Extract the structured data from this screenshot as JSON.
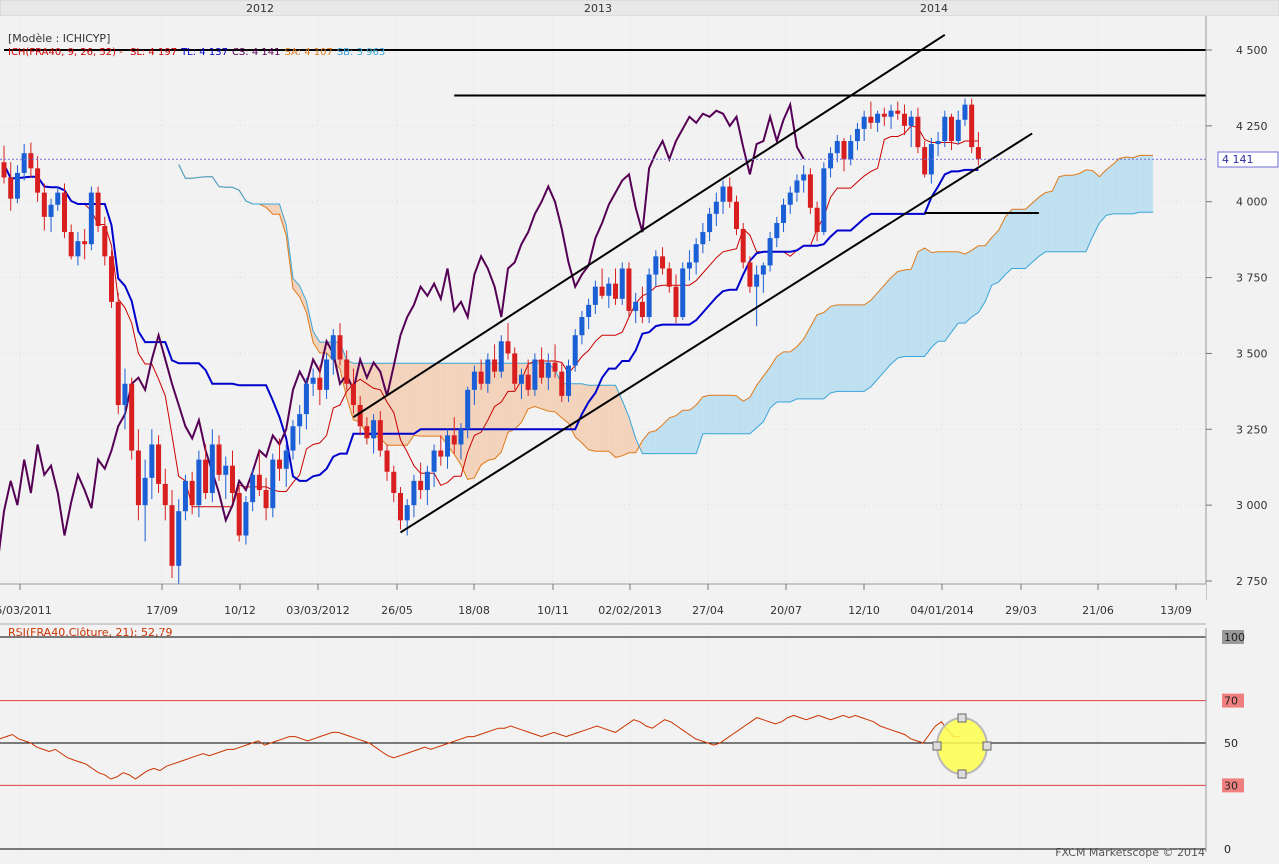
{
  "header": {
    "model_label": "[Modèle : ICHICYP]",
    "ichimoku_legend": {
      "name": "ICH(FRA40, 9, 26, 52)",
      "parts": [
        {
          "text": "SL: 4 197",
          "color": "#cc0000"
        },
        {
          "text": "TL: 4 137",
          "color": "#0000cc"
        },
        {
          "text": "CS: 4 141",
          "color": "#550055"
        },
        {
          "text": "SA: 4 107",
          "color": "#e07a1a"
        },
        {
          "text": "SB: 3 963",
          "color": "#3aa5d8"
        }
      ]
    },
    "year_markers": [
      "2012",
      "2013",
      "2014"
    ]
  },
  "price_axis": {
    "ticks": [
      "4 500",
      "4 250",
      "4 000",
      "3 750",
      "3 500",
      "3 250",
      "3 000",
      "2 750"
    ],
    "current_label": "4 141"
  },
  "date_axis": {
    "ticks": [
      "26/03/2011",
      "17/09",
      "10/12",
      "03/03/2012",
      "26/05",
      "18/08",
      "10/11",
      "02/02/2013",
      "27/04",
      "20/07",
      "12/10",
      "04/01/2014",
      "29/03",
      "21/06",
      "13/09"
    ]
  },
  "rsi": {
    "label": "RSI(FRA40.Clôture, 21): 52,79",
    "ticks": [
      "100",
      "70",
      "50",
      "30",
      "0"
    ]
  },
  "footer": {
    "credit": "FXCM Marketscope © 2014"
  },
  "colors": {
    "candle_up": "#1a5fd6",
    "candle_down": "#d81e1e",
    "tenkan": "#cc0000",
    "kijun": "#0000cc",
    "chikou": "#550055",
    "senkou_a": "#e07a1a",
    "senkou_b": "#3aa5d8",
    "cloud_bull": "#bfe0f0",
    "cloud_bear": "#f3d3bb",
    "rsi_line": "#cc3300",
    "trendlines": "#000000"
  },
  "chart_data": [
    {
      "type": "candlestick",
      "title": "ICH(FRA40, 9, 26, 52)",
      "instrument": "FRA40",
      "timeframe": "weekly",
      "ylim": [
        2750,
        4500
      ],
      "ohlc": [
        [
          4130,
          4185,
          4060,
          4080
        ],
        [
          4080,
          4130,
          3970,
          4010
        ],
        [
          4010,
          4120,
          3995,
          4095
        ],
        [
          4095,
          4190,
          4070,
          4160
        ],
        [
          4160,
          4195,
          4080,
          4110
        ],
        [
          4110,
          4150,
          4000,
          4030
        ],
        [
          4030,
          4060,
          3905,
          3950
        ],
        [
          3950,
          4010,
          3900,
          3990
        ],
        [
          3990,
          4050,
          3970,
          4030
        ],
        [
          4030,
          4060,
          3880,
          3900
        ],
        [
          3900,
          3925,
          3810,
          3820
        ],
        [
          3820,
          3900,
          3790,
          3870
        ],
        [
          3870,
          3910,
          3810,
          3860
        ],
        [
          3860,
          4050,
          3840,
          4030
        ],
        [
          4030,
          4050,
          3900,
          3920
        ],
        [
          3920,
          3950,
          3790,
          3820
        ],
        [
          3820,
          3840,
          3650,
          3670
        ],
        [
          3670,
          3700,
          3300,
          3330
        ],
        [
          3330,
          3450,
          3250,
          3400
        ],
        [
          3400,
          3420,
          3150,
          3180
        ],
        [
          3180,
          3250,
          2950,
          3000
        ],
        [
          3000,
          3150,
          2880,
          3090
        ],
        [
          3090,
          3250,
          3020,
          3200
        ],
        [
          3200,
          3230,
          3040,
          3070
        ],
        [
          3070,
          3120,
          2950,
          3000
        ],
        [
          3000,
          3050,
          2760,
          2800
        ],
        [
          2800,
          3020,
          2740,
          2980
        ],
        [
          2980,
          3100,
          2950,
          3080
        ],
        [
          3080,
          3110,
          2970,
          3000
        ],
        [
          3000,
          3180,
          2960,
          3150
        ],
        [
          3150,
          3200,
          3020,
          3040
        ],
        [
          3040,
          3250,
          3010,
          3200
        ],
        [
          3200,
          3230,
          3080,
          3100
        ],
        [
          3100,
          3160,
          3020,
          3130
        ],
        [
          3130,
          3180,
          3010,
          3040
        ],
        [
          3040,
          3060,
          2880,
          2900
        ],
        [
          2900,
          3030,
          2870,
          3010
        ],
        [
          3010,
          3120,
          2980,
          3100
        ],
        [
          3100,
          3180,
          3030,
          3050
        ],
        [
          3050,
          3090,
          2950,
          2990
        ],
        [
          2990,
          3170,
          2960,
          3150
        ],
        [
          3150,
          3220,
          3080,
          3120
        ],
        [
          3120,
          3200,
          3060,
          3180
        ],
        [
          3180,
          3280,
          3150,
          3260
        ],
        [
          3260,
          3330,
          3200,
          3300
        ],
        [
          3300,
          3420,
          3250,
          3400
        ],
        [
          3400,
          3450,
          3360,
          3420
        ],
        [
          3420,
          3460,
          3330,
          3380
        ],
        [
          3380,
          3500,
          3350,
          3480
        ],
        [
          3480,
          3580,
          3430,
          3560
        ],
        [
          3560,
          3600,
          3460,
          3480
        ],
        [
          3480,
          3510,
          3380,
          3400
        ],
        [
          3400,
          3450,
          3300,
          3330
        ],
        [
          3330,
          3360,
          3230,
          3260
        ],
        [
          3260,
          3290,
          3200,
          3220
        ],
        [
          3220,
          3300,
          3170,
          3280
        ],
        [
          3280,
          3310,
          3160,
          3180
        ],
        [
          3180,
          3200,
          3080,
          3110
        ],
        [
          3110,
          3130,
          3010,
          3040
        ],
        [
          3040,
          3060,
          2920,
          2950
        ],
        [
          2950,
          3020,
          2900,
          3000
        ],
        [
          3000,
          3100,
          2960,
          3080
        ],
        [
          3080,
          3140,
          3020,
          3050
        ],
        [
          3050,
          3130,
          3000,
          3110
        ],
        [
          3110,
          3200,
          3060,
          3180
        ],
        [
          3180,
          3230,
          3130,
          3160
        ],
        [
          3160,
          3250,
          3120,
          3230
        ],
        [
          3230,
          3290,
          3170,
          3200
        ],
        [
          3200,
          3270,
          3150,
          3250
        ],
        [
          3250,
          3390,
          3220,
          3380
        ],
        [
          3380,
          3460,
          3330,
          3440
        ],
        [
          3440,
          3480,
          3380,
          3400
        ],
        [
          3400,
          3500,
          3370,
          3480
        ],
        [
          3480,
          3530,
          3420,
          3440
        ],
        [
          3440,
          3560,
          3420,
          3540
        ],
        [
          3540,
          3600,
          3480,
          3500
        ],
        [
          3500,
          3520,
          3380,
          3400
        ],
        [
          3400,
          3450,
          3350,
          3430
        ],
        [
          3430,
          3480,
          3360,
          3380
        ],
        [
          3380,
          3500,
          3360,
          3480
        ],
        [
          3480,
          3520,
          3400,
          3420
        ],
        [
          3420,
          3500,
          3380,
          3470
        ],
        [
          3470,
          3530,
          3420,
          3440
        ],
        [
          3440,
          3470,
          3340,
          3360
        ],
        [
          3360,
          3480,
          3340,
          3460
        ],
        [
          3460,
          3580,
          3440,
          3560
        ],
        [
          3560,
          3640,
          3530,
          3620
        ],
        [
          3620,
          3680,
          3580,
          3660
        ],
        [
          3660,
          3740,
          3630,
          3720
        ],
        [
          3720,
          3780,
          3680,
          3690
        ],
        [
          3690,
          3750,
          3650,
          3730
        ],
        [
          3730,
          3780,
          3660,
          3680
        ],
        [
          3680,
          3800,
          3660,
          3780
        ],
        [
          3780,
          3800,
          3620,
          3640
        ],
        [
          3640,
          3700,
          3600,
          3670
        ],
        [
          3670,
          3720,
          3600,
          3620
        ],
        [
          3620,
          3780,
          3600,
          3760
        ],
        [
          3760,
          3840,
          3720,
          3820
        ],
        [
          3820,
          3850,
          3760,
          3780
        ],
        [
          3780,
          3800,
          3700,
          3720
        ],
        [
          3720,
          3760,
          3600,
          3620
        ],
        [
          3620,
          3800,
          3610,
          3780
        ],
        [
          3780,
          3840,
          3740,
          3800
        ],
        [
          3800,
          3880,
          3760,
          3860
        ],
        [
          3860,
          3930,
          3830,
          3900
        ],
        [
          3900,
          3980,
          3870,
          3960
        ],
        [
          3960,
          4030,
          3920,
          4000
        ],
        [
          4000,
          4070,
          3960,
          4050
        ],
        [
          4050,
          4080,
          3980,
          4000
        ],
        [
          4000,
          4020,
          3890,
          3910
        ],
        [
          3910,
          3930,
          3780,
          3800
        ],
        [
          3800,
          3820,
          3700,
          3720
        ],
        [
          3720,
          3790,
          3590,
          3760
        ],
        [
          3760,
          3800,
          3700,
          3790
        ],
        [
          3790,
          3900,
          3770,
          3880
        ],
        [
          3880,
          3950,
          3850,
          3930
        ],
        [
          3930,
          4010,
          3900,
          3990
        ],
        [
          3990,
          4050,
          3960,
          4030
        ],
        [
          4030,
          4090,
          4000,
          4070
        ],
        [
          4070,
          4120,
          4030,
          4090
        ],
        [
          4090,
          4110,
          3960,
          3980
        ],
        [
          3980,
          4000,
          3870,
          3900
        ],
        [
          3900,
          4130,
          3890,
          4110
        ],
        [
          4110,
          4180,
          4080,
          4160
        ],
        [
          4160,
          4220,
          4130,
          4200
        ],
        [
          4200,
          4210,
          4100,
          4140
        ],
        [
          4140,
          4220,
          4120,
          4200
        ],
        [
          4200,
          4260,
          4170,
          4240
        ],
        [
          4240,
          4300,
          4200,
          4280
        ],
        [
          4280,
          4330,
          4240,
          4260
        ],
        [
          4260,
          4300,
          4230,
          4290
        ],
        [
          4290,
          4310,
          4250,
          4280
        ],
        [
          4280,
          4320,
          4240,
          4300
        ],
        [
          4300,
          4330,
          4270,
          4290
        ],
        [
          4290,
          4320,
          4220,
          4250
        ],
        [
          4250,
          4300,
          4180,
          4280
        ],
        [
          4280,
          4310,
          4160,
          4180
        ],
        [
          4180,
          4200,
          4080,
          4090
        ],
        [
          4090,
          4210,
          4060,
          4190
        ],
        [
          4190,
          4230,
          4150,
          4200
        ],
        [
          4200,
          4300,
          4180,
          4280
        ],
        [
          4280,
          4290,
          4170,
          4200
        ],
        [
          4200,
          4300,
          4190,
          4270
        ],
        [
          4270,
          4340,
          4250,
          4320
        ],
        [
          4320,
          4340,
          4160,
          4180
        ],
        [
          4180,
          4230,
          4120,
          4141
        ]
      ]
    },
    {
      "type": "line",
      "title": "RSI(FRA40.Clôture, 21): 52,79",
      "ylim": [
        0,
        100
      ],
      "levels": [
        30,
        50,
        70
      ],
      "values": [
        52,
        53,
        54,
        52,
        51,
        50,
        48,
        47,
        46,
        47,
        45,
        43,
        42,
        41,
        40,
        38,
        36,
        35,
        33,
        34,
        36,
        35,
        33,
        35,
        37,
        38,
        37,
        39,
        40,
        41,
        42,
        43,
        44,
        45,
        44,
        45,
        46,
        47,
        47,
        48,
        49,
        50,
        51,
        49,
        50,
        51,
        52,
        53,
        53,
        52,
        51,
        52,
        53,
        54,
        55,
        55,
        54,
        53,
        52,
        51,
        50,
        48,
        46,
        44,
        43,
        44,
        45,
        46,
        47,
        48,
        47,
        48,
        49,
        50,
        51,
        52,
        53,
        53,
        54,
        55,
        56,
        57,
        57,
        58,
        57,
        56,
        55,
        54,
        53,
        54,
        55,
        54,
        53,
        54,
        55,
        56,
        57,
        58,
        57,
        56,
        55,
        57,
        59,
        61,
        60,
        58,
        57,
        59,
        61,
        60,
        58,
        56,
        54,
        52,
        51,
        50,
        49,
        50,
        52,
        54,
        56,
        58,
        60,
        62,
        61,
        60,
        59,
        60,
        62,
        63,
        62,
        61,
        62,
        63,
        62,
        61,
        62,
        63,
        62,
        63,
        62,
        61,
        60,
        58,
        57,
        56,
        55,
        54,
        52,
        51,
        50,
        54,
        58,
        60,
        56,
        53,
        53
      ]
    }
  ]
}
